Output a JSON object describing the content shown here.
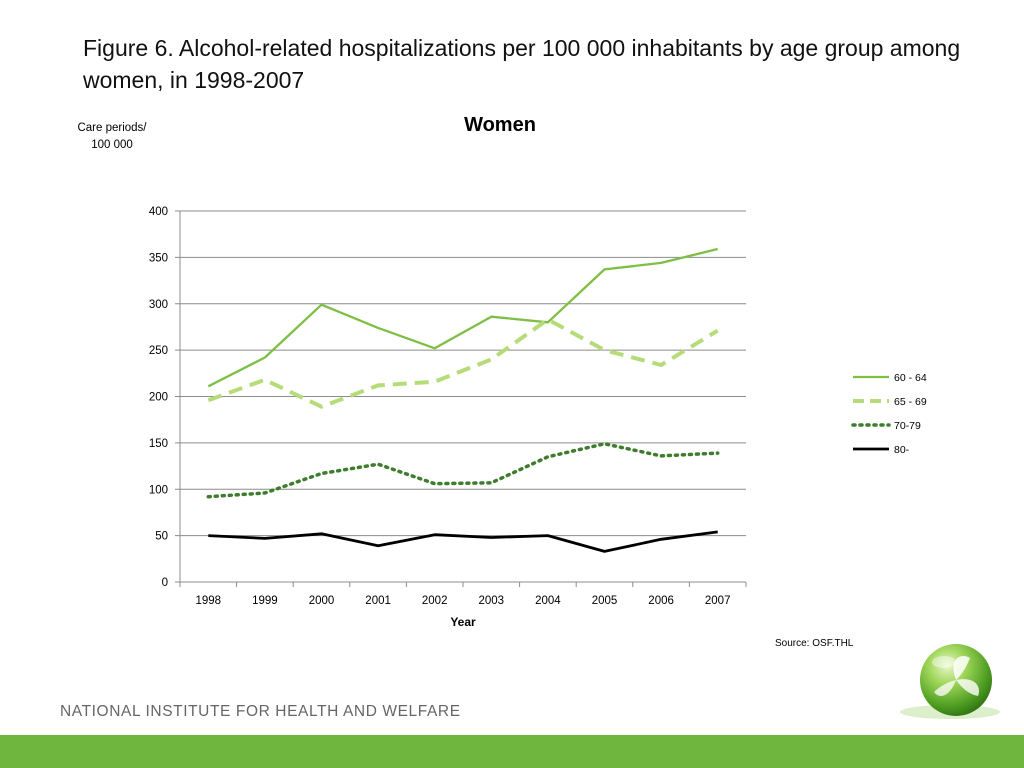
{
  "slide": {
    "title": "Figure 6. Alcohol-related hospitalizations per 100 000 inhabitants by age group among women, in 1998-2007",
    "y_unit_line1": "Care periods/",
    "y_unit_line2": "100 000",
    "source": "Source: OSF.THL",
    "institute": "NATIONAL INSTITUTE FOR HEALTH AND WELFARE",
    "logo_icon": "leaf-globe-icon",
    "footer_color": "#6fb63f"
  },
  "chart_data": {
    "type": "line",
    "title": "Women",
    "xlabel": "Year",
    "ylabel": "Care periods/ 100 000",
    "categories": [
      "1998",
      "1999",
      "2000",
      "2001",
      "2002",
      "2003",
      "2004",
      "2005",
      "2006",
      "2007"
    ],
    "ylim": [
      0,
      400
    ],
    "yticks": [
      0,
      50,
      100,
      150,
      200,
      250,
      300,
      350,
      400
    ],
    "grid": true,
    "legend_position": "right",
    "series": [
      {
        "name": "60 - 64",
        "values": [
          211,
          242,
          299,
          274,
          252,
          286,
          280,
          337,
          344,
          359
        ],
        "color": "#7dbf44",
        "style": "solid"
      },
      {
        "name": "65 - 69",
        "values": [
          196,
          218,
          189,
          212,
          216,
          240,
          283,
          250,
          234,
          271
        ],
        "color": "#b6dc7a",
        "style": "dashed"
      },
      {
        "name": "70-79",
        "values": [
          92,
          96,
          117,
          127,
          106,
          107,
          135,
          149,
          136,
          139
        ],
        "color": "#3e7d2d",
        "style": "dotted"
      },
      {
        "name": "80-",
        "values": [
          50,
          47,
          52,
          39,
          51,
          48,
          50,
          33,
          46,
          54
        ],
        "color": "#000000",
        "style": "solid"
      }
    ]
  }
}
